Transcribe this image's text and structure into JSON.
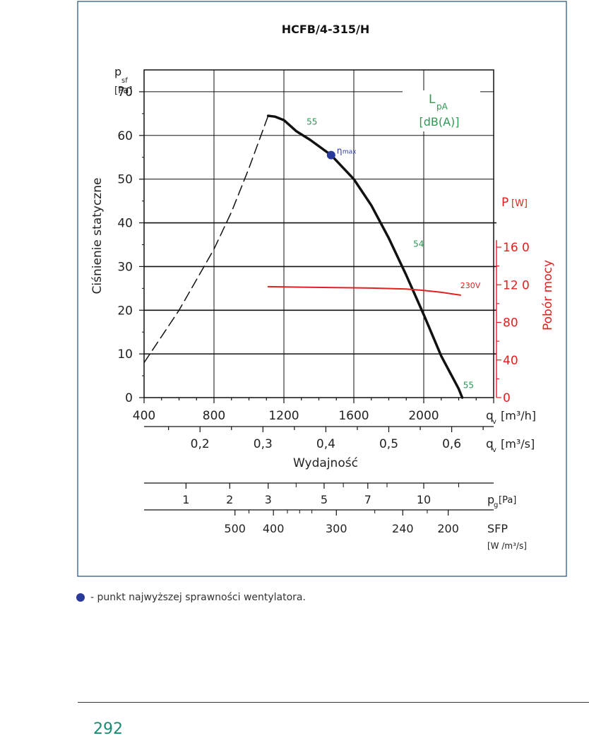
{
  "chart_data": {
    "type": "line",
    "title": "HCFB/4-315/H",
    "ylabel": "Ciśnienie statyczne",
    "y_unit_symbol": "p",
    "y_unit_sub": "sf",
    "y_unit": "[Pa]",
    "ylim": [
      0,
      75
    ],
    "yticks": [
      "0",
      "10",
      "20",
      "30",
      "40",
      "50",
      "60",
      "70"
    ],
    "xlabel": "Wydajność",
    "x_unit": "q",
    "x_unit_sub": "v",
    "x_unit_text": "[m³/h]",
    "xlim": [
      400,
      2400
    ],
    "xticks": [
      "400",
      "800",
      "1200",
      "1600",
      "2000"
    ],
    "x2_unit_text": "[m³/s]",
    "x2ticks": [
      {
        "label": "0,2",
        "value": 0.2
      },
      {
        "label": "0,3",
        "value": 0.3
      },
      {
        "label": "0,4",
        "value": 0.4
      },
      {
        "label": "0,5",
        "value": 0.5
      },
      {
        "label": "0,6",
        "value": 0.6
      }
    ],
    "y2label": "Pobór mocy",
    "y2_unit": "P",
    "y2_unit_bracket": "[W]",
    "y2ticks": [
      {
        "label": "0",
        "value": 0
      },
      {
        "label": "40",
        "value": 40
      },
      {
        "label": "80",
        "value": 80
      },
      {
        "label": "12 0",
        "value": 120
      },
      {
        "label": "16 0",
        "value": 160
      }
    ],
    "y2lim": [
      0,
      160
    ],
    "noise_label_main": "L",
    "noise_label_sub": "pA",
    "noise_label_unit": "[dB(A)]",
    "grid": true,
    "series": [
      {
        "style": "solid",
        "color": "#111111",
        "x": [
          1110,
          1150,
          1200,
          1270,
          1350,
          1470,
          1600,
          1700,
          1800,
          1900,
          2000,
          2100,
          2200,
          2220
        ],
        "y": [
          64.5,
          64.3,
          63.5,
          61.0,
          59.0,
          55.5,
          50.0,
          44.0,
          36.5,
          28.0,
          19.0,
          9.5,
          2.0,
          0
        ]
      },
      {
        "style": "dashed",
        "color": "#111111",
        "x": [
          400,
          500,
          600,
          700,
          800,
          900,
          1000,
          1110
        ],
        "y": [
          8,
          14,
          20,
          27,
          34,
          42.5,
          52.5,
          64.5
        ]
      },
      {
        "name": "230V",
        "axis": "y2",
        "color": "#e32020",
        "x": [
          1110,
          1300,
          1500,
          1700,
          1900,
          2000,
          2100,
          2210
        ],
        "y": [
          118,
          117.5,
          117,
          116.5,
          115.5,
          114,
          112,
          109
        ]
      }
    ],
    "annotations": [
      {
        "text": "55",
        "x": 1330,
        "y": 62.5,
        "color": "#2a9a55"
      },
      {
        "text": "54",
        "x": 1940,
        "y": 34.5,
        "color": "#2a9a55"
      },
      {
        "text": "55",
        "x": 2225,
        "y": 2.2,
        "color": "#2a9a55"
      }
    ],
    "eta_point": {
      "x": 1470,
      "y": 55.5,
      "label": "η",
      "label_sub": "max",
      "color": "#2a3a9a"
    },
    "pg_scale": {
      "unit": "p",
      "unit_sub": "g",
      "unit_bracket": "[Pa]",
      "ticks": [
        {
          "label": "1",
          "x": 640
        },
        {
          "label": "2",
          "x": 890
        },
        {
          "label": "3",
          "x": 1110
        },
        {
          "label": "5",
          "x": 1430
        },
        {
          "label": "7",
          "x": 1680
        },
        {
          "label": "10",
          "x": 2000
        }
      ]
    },
    "sfp_scale": {
      "unit": "SFP",
      "unit_line2": "[W /m³/s]",
      "ticks": [
        {
          "label": "500",
          "x": 920
        },
        {
          "label": "400",
          "x": 1140
        },
        {
          "label": "300",
          "x": 1500
        },
        {
          "label": "240",
          "x": 1880
        },
        {
          "label": "200",
          "x": 2140
        }
      ]
    }
  },
  "footnote": {
    "text": "- punkt najwyższej sprawności wentylatora."
  },
  "page": {
    "number": "292"
  }
}
